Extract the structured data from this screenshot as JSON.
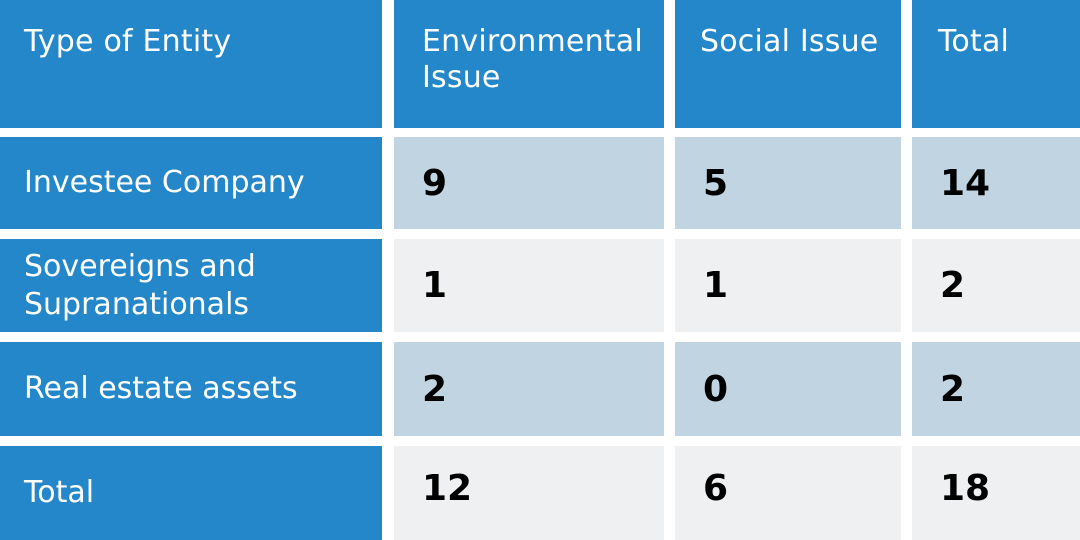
{
  "table": {
    "headers": [
      "Type of Entity",
      "Environmental Issue",
      "Social Issue",
      "Total"
    ],
    "rows": [
      {
        "label": "Investee Company",
        "environmental": "9",
        "social": "5",
        "total": "14"
      },
      {
        "label": "Sovereigns and Supranationals",
        "environmental": "1",
        "social": "1",
        "total": "2"
      },
      {
        "label": "Real estate assets",
        "environmental": "2",
        "social": "0",
        "total": "2"
      },
      {
        "label": "Total",
        "environmental": "12",
        "social": "6",
        "total": "18"
      }
    ]
  },
  "colors": {
    "header_blue": "#2387c9",
    "cell_dark": "#c0d4e1",
    "cell_light": "#eef0f2"
  }
}
